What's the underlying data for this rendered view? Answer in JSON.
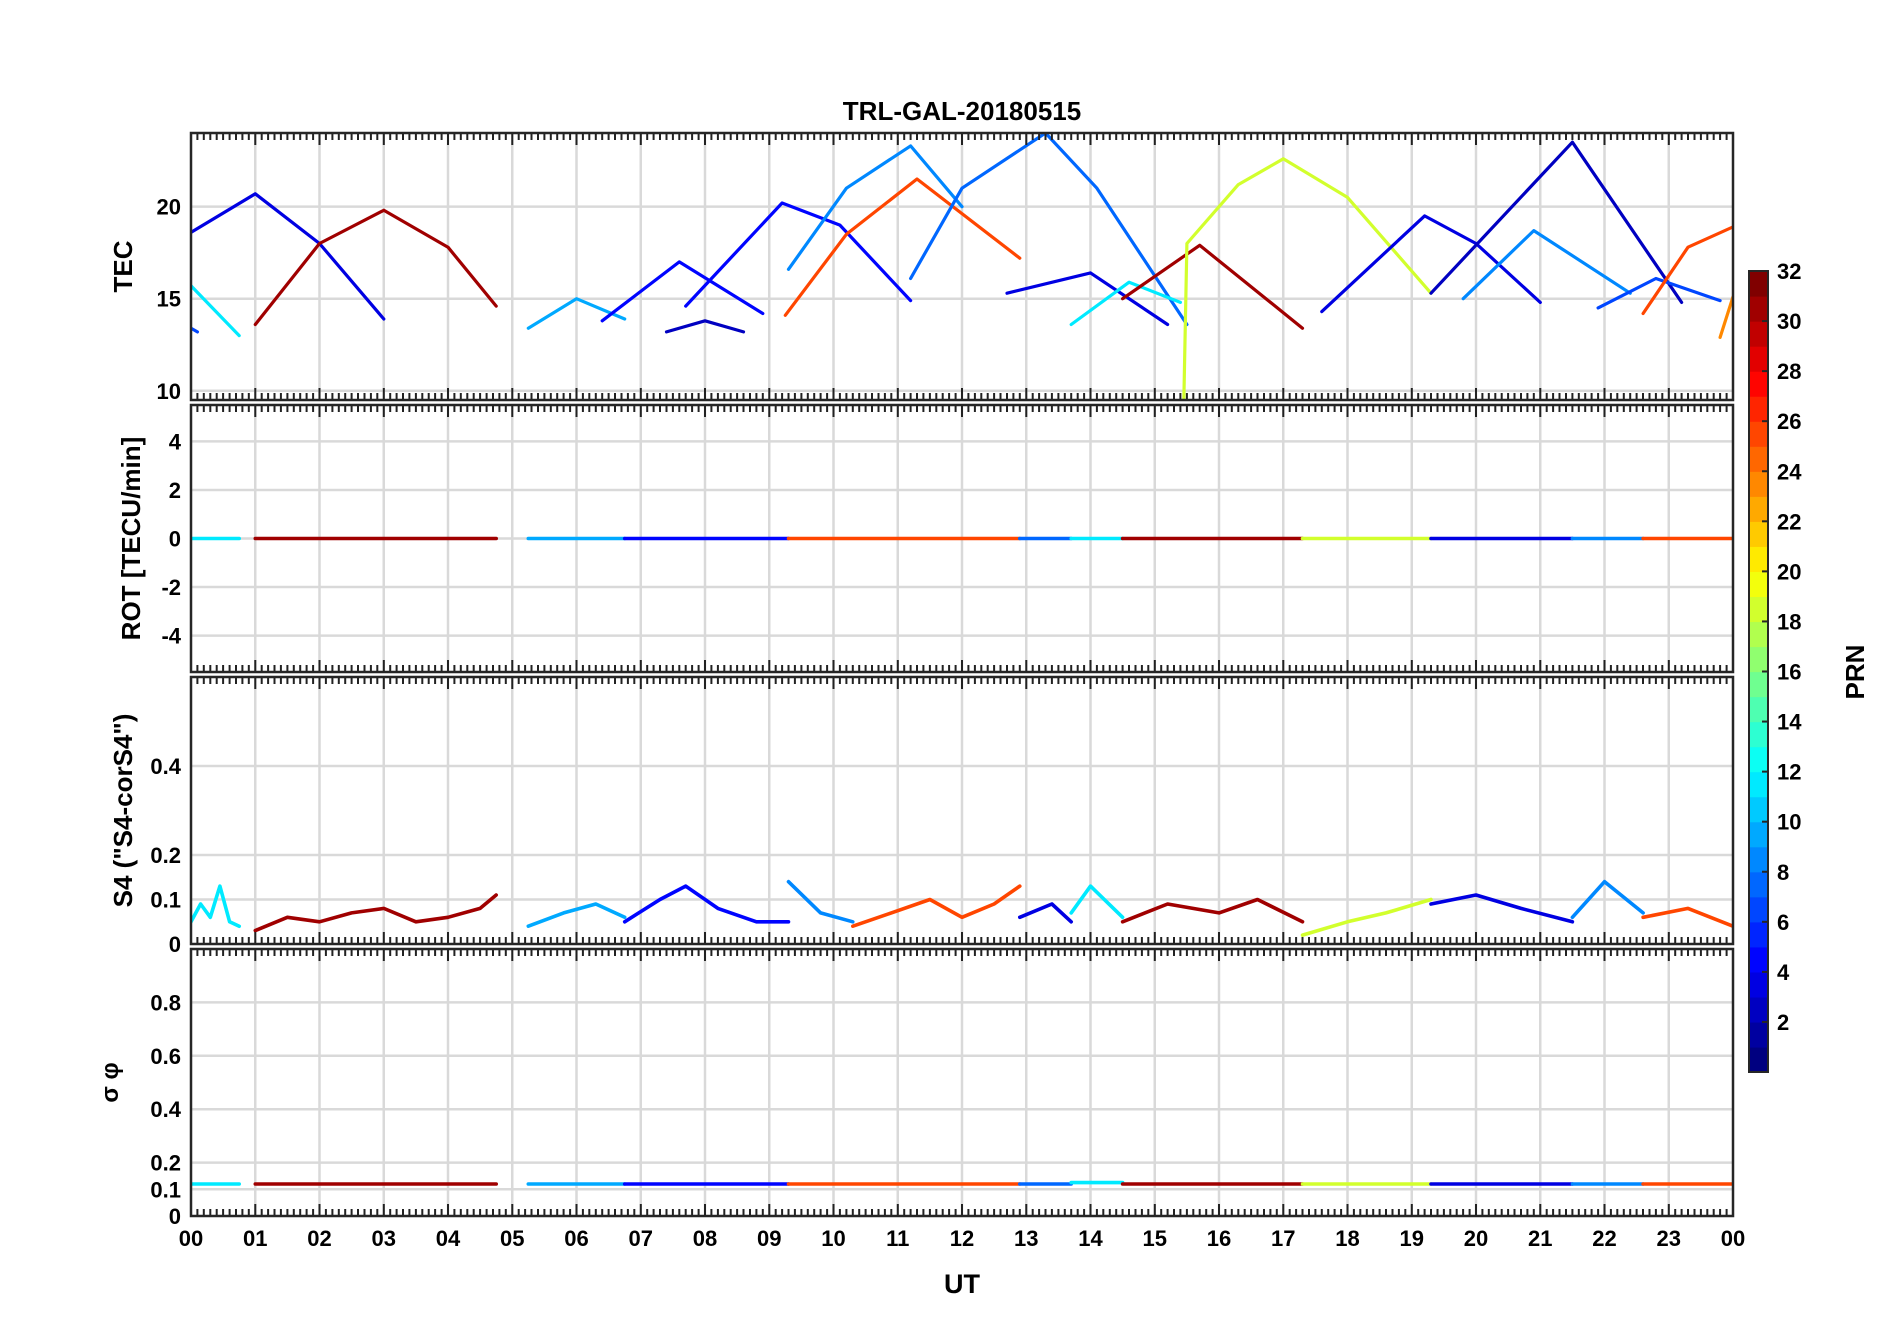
{
  "title": "TRL-GAL-20180515",
  "xlabel": "UT",
  "xticks": [
    "00",
    "01",
    "02",
    "03",
    "04",
    "05",
    "06",
    "07",
    "08",
    "09",
    "10",
    "11",
    "12",
    "13",
    "14",
    "15",
    "16",
    "17",
    "18",
    "19",
    "20",
    "21",
    "22",
    "23",
    "00"
  ],
  "colorbar": {
    "label": "PRN",
    "range": [
      1,
      32
    ],
    "ticks": [
      "2",
      "4",
      "6",
      "8",
      "10",
      "12",
      "14",
      "16",
      "18",
      "20",
      "22",
      "24",
      "26",
      "28",
      "30",
      "32"
    ],
    "colormap": "jet"
  },
  "chart_data": [
    {
      "type": "line",
      "name": "tec-panel",
      "ylabel": "TEC",
      "ylim": [
        9.5,
        24
      ],
      "yticks": [
        "10",
        "15",
        "20"
      ],
      "grid": true,
      "series": [
        {
          "prn": 4,
          "x": [
            0,
            1,
            2,
            3
          ],
          "y": [
            18.6,
            20.7,
            18.0,
            13.9
          ]
        },
        {
          "prn": 12,
          "x": [
            0,
            0.75
          ],
          "y": [
            15.7,
            13.0
          ]
        },
        {
          "prn": 7,
          "x": [
            0,
            0.1
          ],
          "y": [
            13.4,
            13.2
          ]
        },
        {
          "prn": 31,
          "x": [
            1,
            2,
            3,
            4,
            4.75
          ],
          "y": [
            13.6,
            18.0,
            19.8,
            17.8,
            14.6
          ]
        },
        {
          "prn": 10,
          "x": [
            5.25,
            6,
            6.75
          ],
          "y": [
            13.4,
            15.0,
            13.9
          ]
        },
        {
          "prn": 5,
          "x": [
            6.4,
            7.6,
            8.9
          ],
          "y": [
            13.8,
            17.0,
            14.2
          ]
        },
        {
          "prn": 3,
          "x": [
            7.4,
            8.0,
            8.6
          ],
          "y": [
            13.2,
            13.8,
            13.2
          ]
        },
        {
          "prn": 5,
          "x": [
            7.7,
            9.2,
            10.1,
            11.2
          ],
          "y": [
            14.6,
            20.2,
            19.0,
            14.9
          ]
        },
        {
          "prn": 9,
          "x": [
            9.3,
            10.2,
            11.2,
            12.0
          ],
          "y": [
            16.6,
            21.0,
            23.3,
            20.0
          ]
        },
        {
          "prn": 26,
          "x": [
            9.25,
            10.2,
            11.3,
            12.9
          ],
          "y": [
            14.1,
            18.5,
            21.5,
            17.2
          ]
        },
        {
          "prn": 8,
          "x": [
            11.2,
            12.0,
            13.3,
            14.1,
            15.5
          ],
          "y": [
            16.1,
            21.0,
            24.0,
            21.0,
            13.6
          ]
        },
        {
          "prn": 4,
          "x": [
            12.7,
            14.0,
            15.2
          ],
          "y": [
            15.3,
            16.4,
            13.6
          ]
        },
        {
          "prn": 12,
          "x": [
            13.7,
            14.6,
            15.4
          ],
          "y": [
            13.6,
            15.9,
            14.8
          ]
        },
        {
          "prn": 31,
          "x": [
            14.5,
            15.7,
            17.3
          ],
          "y": [
            15.0,
            17.9,
            13.4
          ]
        },
        {
          "prn": 19,
          "x": [
            15.2,
            15.45,
            15.5,
            16.3,
            17.0,
            18.0,
            19.3
          ],
          "y": [
            9.1,
            9.1,
            18.0,
            21.2,
            22.6,
            20.5,
            15.3
          ]
        },
        {
          "prn": 4,
          "x": [
            17.6,
            19.2,
            20.0,
            21.0
          ],
          "y": [
            14.3,
            19.5,
            18.0,
            14.8
          ]
        },
        {
          "prn": 3,
          "x": [
            19.3,
            21.5,
            23.2
          ],
          "y": [
            15.3,
            23.5,
            14.8
          ]
        },
        {
          "prn": 9,
          "x": [
            19.8,
            20.9,
            22.4
          ],
          "y": [
            15.0,
            18.7,
            15.3
          ]
        },
        {
          "prn": 7,
          "x": [
            21.9,
            22.8,
            23.8
          ],
          "y": [
            14.5,
            16.1,
            14.9
          ]
        },
        {
          "prn": 26,
          "x": [
            22.6,
            23.3,
            24.0
          ],
          "y": [
            14.2,
            17.8,
            18.9
          ]
        },
        {
          "prn": 24,
          "x": [
            23.8,
            24.0
          ],
          "y": [
            12.9,
            15.1
          ]
        }
      ]
    },
    {
      "type": "line",
      "name": "rot-panel",
      "ylabel": "ROT [TECU/min]",
      "ylim": [
        -5.5,
        5.5
      ],
      "yticks": [
        "-4",
        "-2",
        "0",
        "2",
        "4"
      ],
      "grid": true,
      "series": [
        {
          "prn": 12,
          "x": [
            0,
            0.75
          ],
          "y": [
            0,
            0
          ]
        },
        {
          "prn": 31,
          "x": [
            1,
            4.75
          ],
          "y": [
            0,
            0
          ]
        },
        {
          "prn": 10,
          "x": [
            5.25,
            6.75
          ],
          "y": [
            0,
            0
          ]
        },
        {
          "prn": 5,
          "x": [
            6.75,
            9.3
          ],
          "y": [
            0,
            0
          ]
        },
        {
          "prn": 26,
          "x": [
            9.3,
            12.9
          ],
          "y": [
            0,
            0
          ]
        },
        {
          "prn": 8,
          "x": [
            12.9,
            13.7
          ],
          "y": [
            0,
            0
          ]
        },
        {
          "prn": 12,
          "x": [
            13.7,
            14.5
          ],
          "y": [
            0,
            0
          ]
        },
        {
          "prn": 31,
          "x": [
            14.5,
            17.3
          ],
          "y": [
            0,
            0
          ]
        },
        {
          "prn": 19,
          "x": [
            17.3,
            19.3
          ],
          "y": [
            0,
            0
          ]
        },
        {
          "prn": 4,
          "x": [
            19.3,
            21.5
          ],
          "y": [
            0,
            0
          ]
        },
        {
          "prn": 9,
          "x": [
            21.5,
            22.6
          ],
          "y": [
            0,
            0
          ]
        },
        {
          "prn": 26,
          "x": [
            22.6,
            24.0
          ],
          "y": [
            0,
            0
          ]
        }
      ]
    },
    {
      "type": "line",
      "name": "s4-panel",
      "ylabel": "S4 (\"S4-corS4\")",
      "ylim": [
        0,
        0.6
      ],
      "yticks": [
        "0",
        "0.1",
        "0.2",
        "0.4"
      ],
      "grid": true,
      "series": [
        {
          "prn": 12,
          "x": [
            0,
            0.15,
            0.3,
            0.45,
            0.6,
            0.75
          ],
          "y": [
            0.05,
            0.09,
            0.06,
            0.13,
            0.05,
            0.04
          ]
        },
        {
          "prn": 31,
          "x": [
            1,
            1.5,
            2.0,
            2.5,
            3.0,
            3.5,
            4.0,
            4.5,
            4.75
          ],
          "y": [
            0.03,
            0.06,
            0.05,
            0.07,
            0.08,
            0.05,
            0.06,
            0.08,
            0.11
          ]
        },
        {
          "prn": 10,
          "x": [
            5.25,
            5.8,
            6.3,
            6.75
          ],
          "y": [
            0.04,
            0.07,
            0.09,
            0.06
          ]
        },
        {
          "prn": 5,
          "x": [
            6.75,
            7.3,
            7.7,
            8.2,
            8.8,
            9.3
          ],
          "y": [
            0.05,
            0.1,
            0.13,
            0.08,
            0.05,
            0.05
          ]
        },
        {
          "prn": 9,
          "x": [
            9.3,
            9.8,
            10.3
          ],
          "y": [
            0.14,
            0.07,
            0.05
          ]
        },
        {
          "prn": 26,
          "x": [
            10.3,
            10.9,
            11.5,
            12.0,
            12.5,
            12.9
          ],
          "y": [
            0.04,
            0.07,
            0.1,
            0.06,
            0.09,
            0.13
          ]
        },
        {
          "prn": 4,
          "x": [
            12.9,
            13.4,
            13.7
          ],
          "y": [
            0.06,
            0.09,
            0.05
          ]
        },
        {
          "prn": 12,
          "x": [
            13.7,
            14.0,
            14.5
          ],
          "y": [
            0.07,
            0.13,
            0.06
          ]
        },
        {
          "prn": 31,
          "x": [
            14.5,
            15.2,
            16.0,
            16.6,
            17.3
          ],
          "y": [
            0.05,
            0.09,
            0.07,
            0.1,
            0.05
          ]
        },
        {
          "prn": 19,
          "x": [
            17.3,
            18.0,
            18.6,
            19.3
          ],
          "y": [
            0.02,
            0.05,
            0.07,
            0.1
          ]
        },
        {
          "prn": 4,
          "x": [
            19.3,
            20.0,
            20.7,
            21.5
          ],
          "y": [
            0.09,
            0.11,
            0.08,
            0.05
          ]
        },
        {
          "prn": 9,
          "x": [
            21.5,
            22.0,
            22.6
          ],
          "y": [
            0.06,
            0.14,
            0.07
          ]
        },
        {
          "prn": 26,
          "x": [
            22.6,
            23.3,
            24.0
          ],
          "y": [
            0.06,
            0.08,
            0.04
          ]
        }
      ]
    },
    {
      "type": "line",
      "name": "sigma-phi-panel",
      "ylabel": "σ φ",
      "ylim": [
        0,
        1.0
      ],
      "yticks": [
        "0",
        "0.1",
        "0.2",
        "0.4",
        "0.6",
        "0.8"
      ],
      "grid": true,
      "series": [
        {
          "prn": 12,
          "x": [
            0,
            0.75
          ],
          "y": [
            0.12,
            0.12
          ]
        },
        {
          "prn": 31,
          "x": [
            1,
            4.75
          ],
          "y": [
            0.12,
            0.12
          ]
        },
        {
          "prn": 10,
          "x": [
            5.25,
            6.75
          ],
          "y": [
            0.12,
            0.12
          ]
        },
        {
          "prn": 5,
          "x": [
            6.75,
            9.3
          ],
          "y": [
            0.12,
            0.12
          ]
        },
        {
          "prn": 26,
          "x": [
            9.3,
            12.9
          ],
          "y": [
            0.12,
            0.12
          ]
        },
        {
          "prn": 8,
          "x": [
            12.9,
            13.7
          ],
          "y": [
            0.12,
            0.12
          ]
        },
        {
          "prn": 12,
          "x": [
            13.7,
            14.5
          ],
          "y": [
            0.125,
            0.125
          ]
        },
        {
          "prn": 31,
          "x": [
            14.5,
            17.3
          ],
          "y": [
            0.12,
            0.12
          ]
        },
        {
          "prn": 19,
          "x": [
            17.3,
            19.3
          ],
          "y": [
            0.12,
            0.12
          ]
        },
        {
          "prn": 4,
          "x": [
            19.3,
            21.5
          ],
          "y": [
            0.12,
            0.12
          ]
        },
        {
          "prn": 9,
          "x": [
            21.5,
            22.6
          ],
          "y": [
            0.12,
            0.12
          ]
        },
        {
          "prn": 26,
          "x": [
            22.6,
            24.0
          ],
          "y": [
            0.12,
            0.12
          ]
        }
      ]
    }
  ]
}
